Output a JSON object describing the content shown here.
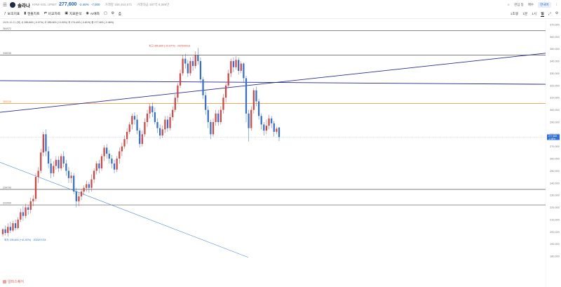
{
  "header": {
    "coin_name": "솔라나",
    "pair": "KRW-SOL UPBIT",
    "price": "277,600",
    "change": "-2.46%",
    "change_abs": "-7,000",
    "volume_label": "거래량 158,453,671",
    "amount_label": "거래대금 387억 9,389만",
    "right_label_1": "관심 등",
    "right_label_2": "매수",
    "right_badge": "한국어"
  },
  "toolbar": {
    "items": [
      "보조지표",
      "캔들차트",
      "비교차트",
      "지표분석",
      "AI예측"
    ],
    "timeframes": [
      "1초봉",
      "1분",
      "1시",
      "일"
    ],
    "active_timeframe": "일"
  },
  "legend": {
    "date": "2025-10-21 (화)",
    "open": "시 285,600 (-0.07%)",
    "high": "고 285,600 (+0.00%)",
    "low": "저 274,400 (-3.81%)",
    "close": "종 277,600 (-2.46%)"
  },
  "watermark": "알파스퀘어",
  "chart_data": {
    "type": "candlestick",
    "y_axis_ticks": [
      370000,
      360000,
      350000,
      340000,
      330000,
      320000,
      310000,
      300000,
      290000,
      280000,
      270000,
      260000,
      250000,
      240000,
      230000,
      220000,
      210000,
      200000,
      190000,
      180000
    ],
    "current_price": "277,600",
    "current_change": "-2.46%",
    "up_color": "#d8433e",
    "down_color": "#2f6fd6",
    "horizontal_lines": [
      {
        "label": "364972",
        "value": 364972,
        "color": "#555555"
      },
      {
        "label": "345035",
        "value": 345035,
        "color": "#555555"
      },
      {
        "label": "305226",
        "value": 305226,
        "color": "#f08a2b"
      },
      {
        "label": "234790",
        "value": 234790,
        "color": "#555555"
      },
      {
        "label": "222000",
        "value": 222000,
        "color": "#555555"
      }
    ],
    "annotations": {
      "high": "최고 350,800 (-20.87%) · 2025/09/18",
      "low": "최저 195,600 (+41.92%) · 2025/07/24"
    },
    "trend_lines": [
      {
        "name": "rising-trend",
        "color": "#2a2a9c",
        "from": [
          0,
          298000
        ],
        "to": [
          1,
          346500
        ]
      },
      {
        "name": "flat-trend",
        "color": "#23239a",
        "from": [
          0,
          324000
        ],
        "to": [
          1,
          321000
        ]
      },
      {
        "name": "falling-trend",
        "color": "#5a8ad8",
        "from": [
          0,
          257000
        ],
        "to": [
          0.455,
          179000
        ]
      }
    ],
    "candles": [
      [
        198000,
        202000,
        196000,
        203000
      ],
      [
        202000,
        199000,
        197000,
        205000
      ],
      [
        199000,
        204000,
        196000,
        207000
      ],
      [
        204000,
        201000,
        199000,
        208000
      ],
      [
        201000,
        207000,
        200000,
        209000
      ],
      [
        207000,
        203000,
        201000,
        210000
      ],
      [
        203000,
        210000,
        202000,
        212000
      ],
      [
        210000,
        216000,
        208000,
        219000
      ],
      [
        216000,
        213000,
        209000,
        221000
      ],
      [
        213000,
        220000,
        211000,
        223000
      ],
      [
        220000,
        218000,
        214000,
        222000
      ],
      [
        218000,
        225000,
        215000,
        228000
      ],
      [
        225000,
        227000,
        221000,
        230000
      ],
      [
        227000,
        245000,
        225000,
        248000
      ],
      [
        245000,
        250000,
        240000,
        253000
      ],
      [
        250000,
        265000,
        248000,
        268000
      ],
      [
        265000,
        280000,
        262000,
        282000
      ],
      [
        280000,
        266000,
        262000,
        284000
      ],
      [
        266000,
        256000,
        252000,
        270000
      ],
      [
        256000,
        248000,
        244000,
        260000
      ],
      [
        248000,
        254000,
        245000,
        258000
      ],
      [
        254000,
        259000,
        251000,
        262000
      ],
      [
        259000,
        252000,
        249000,
        262000
      ],
      [
        252000,
        262000,
        250000,
        264000
      ],
      [
        262000,
        256000,
        253000,
        266000
      ],
      [
        256000,
        250000,
        246000,
        259000
      ],
      [
        250000,
        244000,
        240000,
        253000
      ],
      [
        244000,
        246000,
        240000,
        249000
      ],
      [
        246000,
        233000,
        231000,
        248000
      ],
      [
        233000,
        225000,
        220000,
        236000
      ],
      [
        225000,
        229000,
        221000,
        232000
      ],
      [
        229000,
        233000,
        226000,
        235000
      ],
      [
        233000,
        236000,
        230000,
        238000
      ],
      [
        236000,
        239000,
        233000,
        242000
      ],
      [
        239000,
        236000,
        232000,
        241000
      ],
      [
        236000,
        243000,
        233000,
        247000
      ],
      [
        243000,
        250000,
        240000,
        252000
      ],
      [
        250000,
        256000,
        247000,
        258000
      ],
      [
        256000,
        252000,
        248000,
        259000
      ],
      [
        252000,
        262000,
        250000,
        264000
      ],
      [
        262000,
        269000,
        258000,
        271000
      ],
      [
        269000,
        264000,
        260000,
        272000
      ],
      [
        264000,
        260000,
        256000,
        267000
      ],
      [
        260000,
        256000,
        252000,
        263000
      ],
      [
        256000,
        251000,
        248000,
        259000
      ],
      [
        251000,
        260000,
        249000,
        262000
      ],
      [
        260000,
        266000,
        256000,
        269000
      ],
      [
        266000,
        270000,
        262000,
        273000
      ],
      [
        270000,
        276000,
        268000,
        279000
      ],
      [
        276000,
        282000,
        272000,
        285000
      ],
      [
        282000,
        288000,
        280000,
        290000
      ],
      [
        288000,
        295000,
        284000,
        297000
      ],
      [
        295000,
        292000,
        288000,
        298000
      ],
      [
        292000,
        283000,
        280000,
        296000
      ],
      [
        283000,
        272000,
        269000,
        285000
      ],
      [
        272000,
        280000,
        270000,
        283000
      ],
      [
        280000,
        290000,
        278000,
        293000
      ],
      [
        290000,
        297000,
        286000,
        300000
      ],
      [
        297000,
        303000,
        293000,
        305000
      ],
      [
        303000,
        298000,
        294000,
        306000
      ],
      [
        298000,
        290000,
        288000,
        302000
      ],
      [
        290000,
        285000,
        281000,
        293000
      ],
      [
        285000,
        279000,
        276000,
        288000
      ],
      [
        279000,
        284000,
        277000,
        287000
      ],
      [
        284000,
        292000,
        281000,
        295000
      ],
      [
        292000,
        285000,
        282000,
        295000
      ],
      [
        285000,
        294000,
        283000,
        297000
      ],
      [
        294000,
        300000,
        291000,
        303000
      ],
      [
        300000,
        310000,
        298000,
        313000
      ],
      [
        310000,
        320000,
        306000,
        322000
      ],
      [
        320000,
        330000,
        318000,
        333000
      ],
      [
        330000,
        342000,
        328000,
        345000
      ],
      [
        342000,
        338000,
        334000,
        346000
      ],
      [
        338000,
        330000,
        327000,
        341000
      ],
      [
        330000,
        340000,
        328000,
        343000
      ],
      [
        340000,
        336000,
        332000,
        344000
      ],
      [
        336000,
        345000,
        334000,
        348000
      ],
      [
        345000,
        340000,
        337000,
        350800
      ],
      [
        340000,
        325000,
        322000,
        343000
      ],
      [
        325000,
        312000,
        309000,
        327000
      ],
      [
        312000,
        300000,
        296000,
        315000
      ],
      [
        300000,
        290000,
        285000,
        303000
      ],
      [
        290000,
        280000,
        276000,
        292000
      ],
      [
        280000,
        290000,
        278000,
        293000
      ],
      [
        290000,
        297000,
        287000,
        300000
      ],
      [
        297000,
        290000,
        287000,
        300000
      ],
      [
        290000,
        300000,
        288000,
        303000
      ],
      [
        300000,
        310000,
        297000,
        313000
      ],
      [
        310000,
        320000,
        306000,
        322000
      ],
      [
        320000,
        330000,
        318000,
        333000
      ],
      [
        330000,
        340000,
        327000,
        342000
      ],
      [
        340000,
        335000,
        331000,
        343000
      ],
      [
        335000,
        341000,
        333000,
        344000
      ],
      [
        341000,
        332000,
        329000,
        343000
      ],
      [
        332000,
        338000,
        330000,
        340000
      ],
      [
        338000,
        326000,
        322000,
        339000
      ],
      [
        326000,
        297000,
        290000,
        328000
      ],
      [
        297000,
        285000,
        274000,
        300000
      ],
      [
        285000,
        300000,
        283000,
        303000
      ],
      [
        300000,
        316000,
        297000,
        318000
      ],
      [
        316000,
        307000,
        303000,
        319000
      ],
      [
        307000,
        295000,
        292000,
        309000
      ],
      [
        295000,
        288000,
        284000,
        297000
      ],
      [
        288000,
        283000,
        279000,
        290000
      ],
      [
        283000,
        287000,
        280000,
        292000
      ],
      [
        287000,
        293000,
        284000,
        296000
      ],
      [
        293000,
        289000,
        285000,
        295000
      ],
      [
        289000,
        282000,
        278000,
        291000
      ],
      [
        282000,
        284600,
        280000,
        286000
      ],
      [
        285600,
        277600,
        274400,
        285600
      ]
    ]
  }
}
